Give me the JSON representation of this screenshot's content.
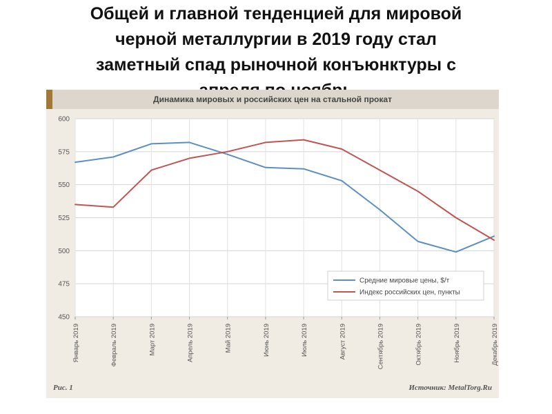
{
  "slide": {
    "title_lines": [
      "Общей и главной тенденцией для мировой",
      "черной металлургии в 2019 году стал",
      "заметный спад рыночной конъюнктуры с",
      "апреля по ноябрь"
    ]
  },
  "figure": {
    "caption": "Рис. 1",
    "source": "Источник: MetalTorg.Ru",
    "colors": {
      "header_bg": "#dcd6cc",
      "header_tab": "#a27839",
      "plot_bg": "#ffffff",
      "frame_bg": "#f1ece3"
    }
  },
  "chart_data": {
    "type": "line",
    "title": "Динамика мировых и российских цен на стальной прокат",
    "categories": [
      "Январь 2019",
      "Февраль 2019",
      "Март 2019",
      "Апрель 2019",
      "Май 2019",
      "Июнь 2019",
      "Июль 2019",
      "Август 2019",
      "Сентябрь 2019",
      "Октябрь 2019",
      "Ноябрь 2019",
      "Декабрь 2019"
    ],
    "y_ticks": [
      "450",
      "475",
      "500",
      "525",
      "550",
      "575",
      "600"
    ],
    "ylim": [
      450,
      600
    ],
    "grid": true,
    "legend_position": "bottom-right",
    "series": [
      {
        "name": "Средние мировые цены, $/т",
        "color": "#5b8ec2",
        "values": [
          567,
          571,
          581,
          582,
          573,
          563,
          562,
          553,
          531,
          507,
          499,
          511
        ]
      },
      {
        "name": "Индекс российских цен, пункты",
        "color": "#bf5450",
        "values": [
          535,
          533,
          561,
          570,
          575,
          582,
          584,
          577,
          561,
          545,
          525,
          508
        ]
      }
    ]
  }
}
